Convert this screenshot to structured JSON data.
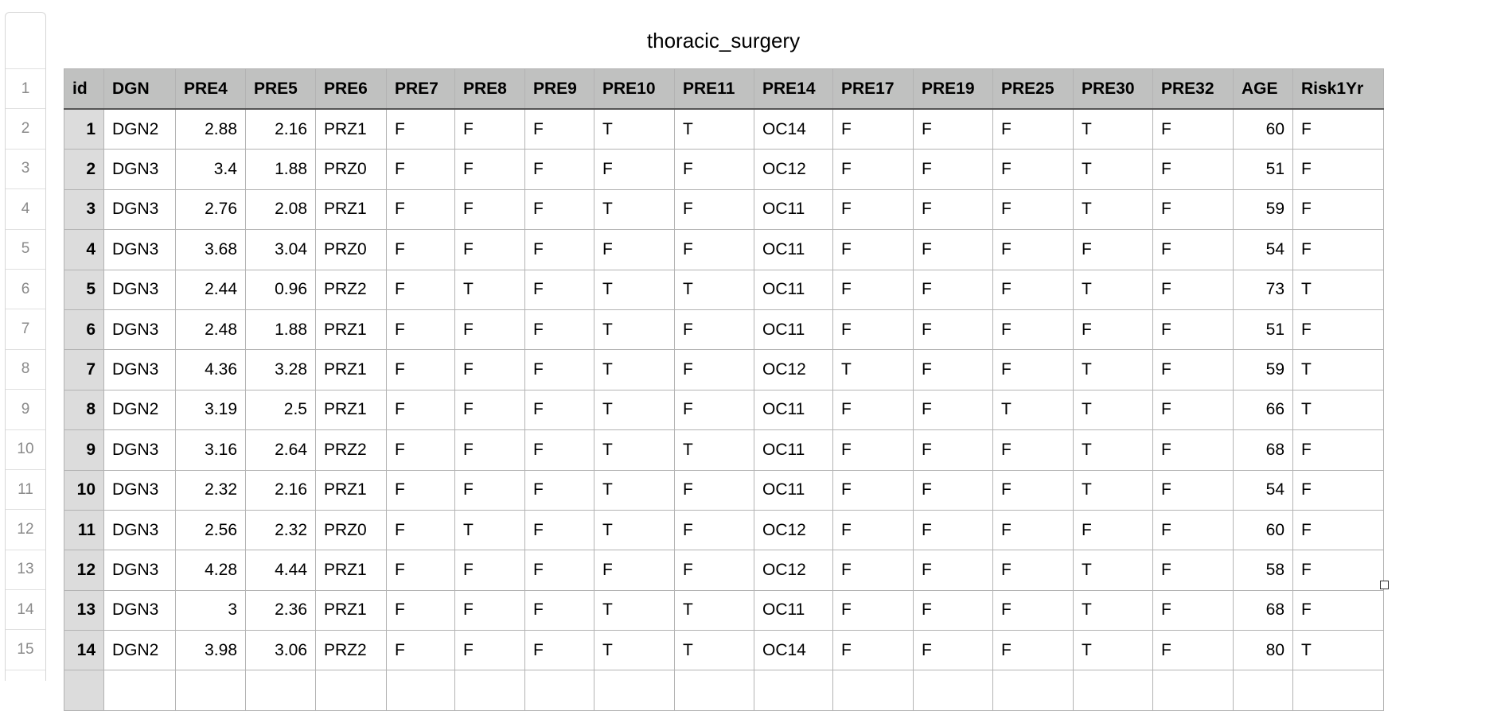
{
  "title": "thoracic_surgery",
  "row_numbers": [
    "1",
    "2",
    "3",
    "4",
    "5",
    "6",
    "7",
    "8",
    "9",
    "10",
    "11",
    "12",
    "13",
    "14",
    "15"
  ],
  "columns": [
    "id",
    "DGN",
    "PRE4",
    "PRE5",
    "PRE6",
    "PRE7",
    "PRE8",
    "PRE9",
    "PRE10",
    "PRE11",
    "PRE14",
    "PRE17",
    "PRE19",
    "PRE25",
    "PRE30",
    "PRE32",
    "AGE",
    "Risk1Yr"
  ],
  "rows": [
    [
      "1",
      "DGN2",
      "2.88",
      "2.16",
      "PRZ1",
      "F",
      "F",
      "F",
      "T",
      "T",
      "OC14",
      "F",
      "F",
      "F",
      "T",
      "F",
      "60",
      "F"
    ],
    [
      "2",
      "DGN3",
      "3.4",
      "1.88",
      "PRZ0",
      "F",
      "F",
      "F",
      "F",
      "F",
      "OC12",
      "F",
      "F",
      "F",
      "T",
      "F",
      "51",
      "F"
    ],
    [
      "3",
      "DGN3",
      "2.76",
      "2.08",
      "PRZ1",
      "F",
      "F",
      "F",
      "T",
      "F",
      "OC11",
      "F",
      "F",
      "F",
      "T",
      "F",
      "59",
      "F"
    ],
    [
      "4",
      "DGN3",
      "3.68",
      "3.04",
      "PRZ0",
      "F",
      "F",
      "F",
      "F",
      "F",
      "OC11",
      "F",
      "F",
      "F",
      "F",
      "F",
      "54",
      "F"
    ],
    [
      "5",
      "DGN3",
      "2.44",
      "0.96",
      "PRZ2",
      "F",
      "T",
      "F",
      "T",
      "T",
      "OC11",
      "F",
      "F",
      "F",
      "T",
      "F",
      "73",
      "T"
    ],
    [
      "6",
      "DGN3",
      "2.48",
      "1.88",
      "PRZ1",
      "F",
      "F",
      "F",
      "T",
      "F",
      "OC11",
      "F",
      "F",
      "F",
      "F",
      "F",
      "51",
      "F"
    ],
    [
      "7",
      "DGN3",
      "4.36",
      "3.28",
      "PRZ1",
      "F",
      "F",
      "F",
      "T",
      "F",
      "OC12",
      "T",
      "F",
      "F",
      "T",
      "F",
      "59",
      "T"
    ],
    [
      "8",
      "DGN2",
      "3.19",
      "2.5",
      "PRZ1",
      "F",
      "F",
      "F",
      "T",
      "F",
      "OC11",
      "F",
      "F",
      "T",
      "T",
      "F",
      "66",
      "T"
    ],
    [
      "9",
      "DGN3",
      "3.16",
      "2.64",
      "PRZ2",
      "F",
      "F",
      "F",
      "T",
      "T",
      "OC11",
      "F",
      "F",
      "F",
      "T",
      "F",
      "68",
      "F"
    ],
    [
      "10",
      "DGN3",
      "2.32",
      "2.16",
      "PRZ1",
      "F",
      "F",
      "F",
      "T",
      "F",
      "OC11",
      "F",
      "F",
      "F",
      "T",
      "F",
      "54",
      "F"
    ],
    [
      "11",
      "DGN3",
      "2.56",
      "2.32",
      "PRZ0",
      "F",
      "T",
      "F",
      "T",
      "F",
      "OC12",
      "F",
      "F",
      "F",
      "F",
      "F",
      "60",
      "F"
    ],
    [
      "12",
      "DGN3",
      "4.28",
      "4.44",
      "PRZ1",
      "F",
      "F",
      "F",
      "F",
      "F",
      "OC12",
      "F",
      "F",
      "F",
      "T",
      "F",
      "58",
      "F"
    ],
    [
      "13",
      "DGN3",
      "3",
      "2.36",
      "PRZ1",
      "F",
      "F",
      "F",
      "T",
      "T",
      "OC11",
      "F",
      "F",
      "F",
      "T",
      "F",
      "68",
      "F"
    ],
    [
      "14",
      "DGN2",
      "3.98",
      "3.06",
      "PRZ2",
      "F",
      "F",
      "F",
      "T",
      "T",
      "OC14",
      "F",
      "F",
      "F",
      "T",
      "F",
      "80",
      "T"
    ]
  ],
  "numeric_columns": [
    "id",
    "PRE4",
    "PRE5",
    "AGE"
  ]
}
